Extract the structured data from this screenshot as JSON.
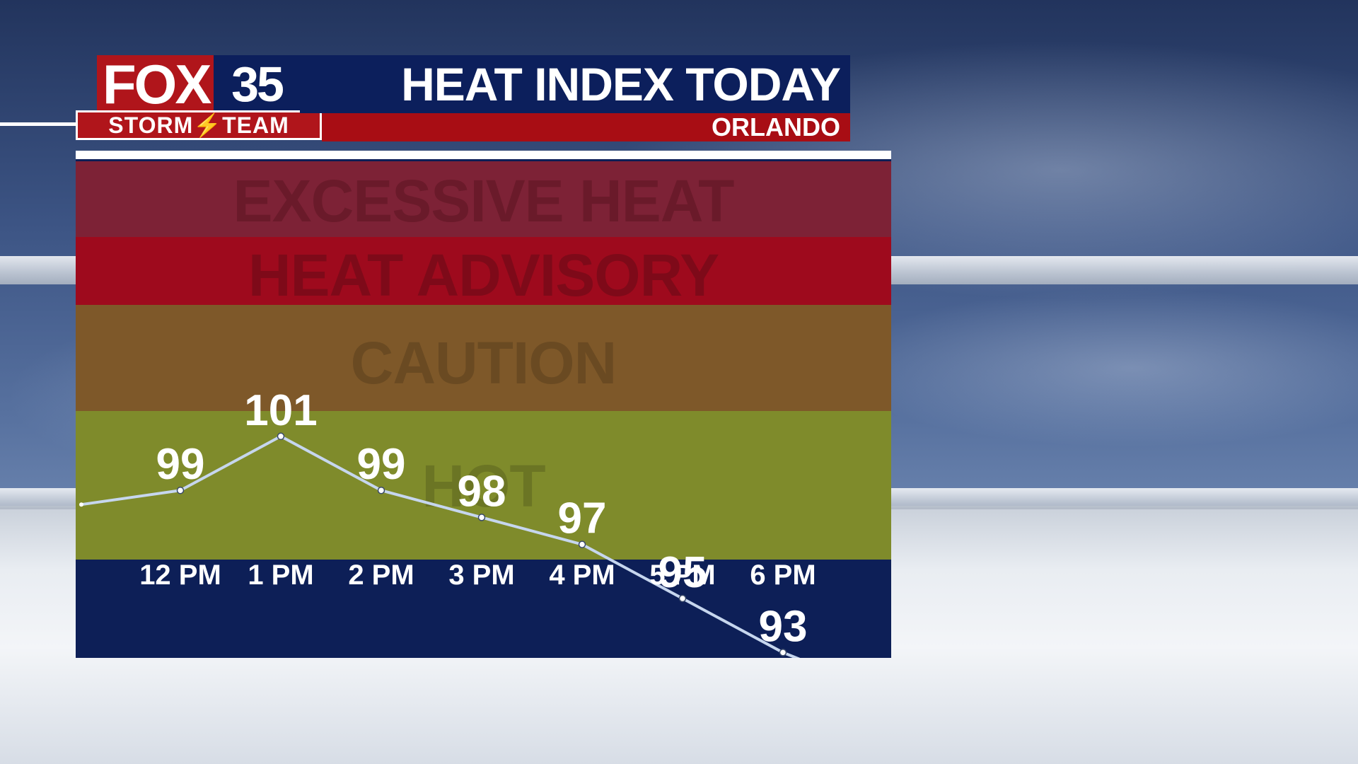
{
  "header": {
    "logo_text": "FOX",
    "logo_number": "35",
    "team_label": "STORM⚡TEAM",
    "title": "HEAT INDEX TODAY",
    "location": "ORLANDO"
  },
  "zones": {
    "excessive_heat": "EXCESSIVE HEAT",
    "heat_advisory": "HEAT ADVISORY",
    "caution": "CAUTION",
    "hot": "HOT"
  },
  "colors": {
    "line": "#c6d6ee",
    "excessive_heat": "#7d2236",
    "heat_advisory": "#9e0a1d",
    "caution": "#7e5829",
    "hot": "#7f8b2b",
    "panel": "#0d1f57",
    "brand_red": "#b0151b",
    "brand_blue": "#0c1f5c"
  },
  "chart_data": {
    "type": "line",
    "title": "HEAT INDEX TODAY",
    "xlabel": "",
    "ylabel": "",
    "categories": [
      "12 PM",
      "1 PM",
      "2 PM",
      "3 PM",
      "4 PM",
      "5 PM",
      "6 PM"
    ],
    "values": [
      99,
      101,
      99,
      98,
      97,
      95,
      93
    ],
    "ylim": [
      90,
      111
    ],
    "legend": "none",
    "grid": false
  }
}
